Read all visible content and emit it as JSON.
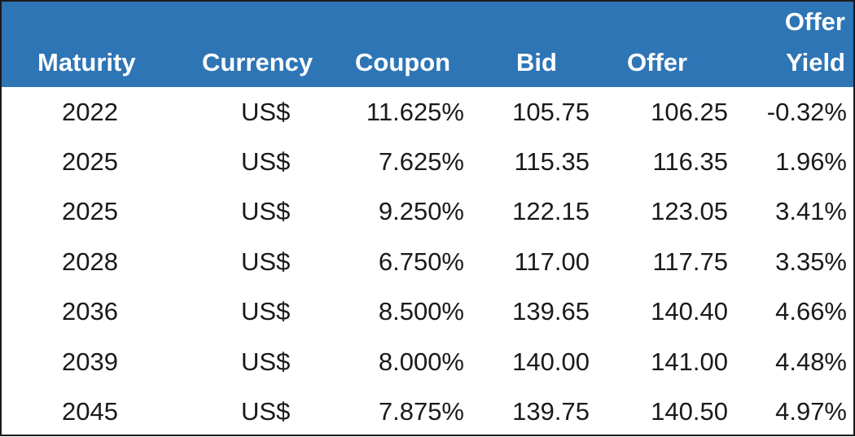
{
  "table": {
    "headers": {
      "maturity": "Maturity",
      "currency": "Currency",
      "coupon": "Coupon",
      "bid": "Bid",
      "offer": "Offer",
      "offer_yield_line1": "Offer",
      "offer_yield_line2": "Yield"
    },
    "rows": [
      {
        "maturity": "2022",
        "currency": "US$",
        "coupon": "11.625%",
        "bid": "105.75",
        "offer": "106.25",
        "offer_yield": "-0.32%"
      },
      {
        "maturity": "2025",
        "currency": "US$",
        "coupon": "7.625%",
        "bid": "115.35",
        "offer": "116.35",
        "offer_yield": "1.96%"
      },
      {
        "maturity": "2025",
        "currency": "US$",
        "coupon": "9.250%",
        "bid": "122.15",
        "offer": "123.05",
        "offer_yield": "3.41%"
      },
      {
        "maturity": "2028",
        "currency": "US$",
        "coupon": "6.750%",
        "bid": "117.00",
        "offer": "117.75",
        "offer_yield": "3.35%"
      },
      {
        "maturity": "2036",
        "currency": "US$",
        "coupon": "8.500%",
        "bid": "139.65",
        "offer": "140.40",
        "offer_yield": "4.66%"
      },
      {
        "maturity": "2039",
        "currency": "US$",
        "coupon": "8.000%",
        "bid": "140.00",
        "offer": "141.00",
        "offer_yield": "4.48%"
      },
      {
        "maturity": "2045",
        "currency": "US$",
        "coupon": "7.875%",
        "bid": "139.75",
        "offer": "140.50",
        "offer_yield": "4.97%"
      }
    ]
  },
  "colors": {
    "header_background": "#2e75b6",
    "header_text": "#ffffff",
    "body_text": "#1a1a1a"
  }
}
